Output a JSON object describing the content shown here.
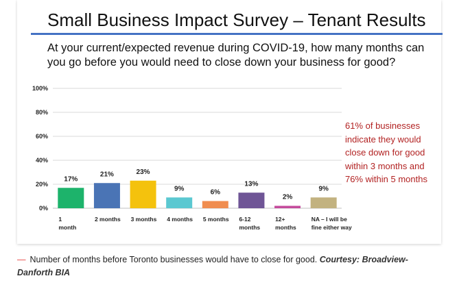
{
  "slide": {
    "title": "Small Business Impact Survey – Tenant Results",
    "question": "At your current/expected revenue during COVID-19, how many months can you go before you would need to close down your business for good?",
    "annotation": "61% of businesses indicate they would close down for good within 3 months and 76% within 5 months",
    "accent_color": "#4472c4",
    "annotation_color": "#b22222"
  },
  "caption": {
    "dash": "—",
    "text": "Number of months before Toronto businesses would have to close for good.",
    "credit": "Courtesy: Broadview-Danforth BIA"
  },
  "chart_data": {
    "type": "bar",
    "categories": [
      [
        "1",
        "month"
      ],
      [
        "2 months"
      ],
      [
        "3 months"
      ],
      [
        "4 months"
      ],
      [
        "5 months"
      ],
      [
        "6-12",
        "months"
      ],
      [
        "12+",
        "months"
      ],
      [
        "NA – I will be",
        "fine either way"
      ]
    ],
    "values": [
      17,
      21,
      23,
      9,
      6,
      13,
      2,
      9
    ],
    "data_labels": [
      "17%",
      "21%",
      "23%",
      "9%",
      "6%",
      "13%",
      "2%",
      "9%"
    ],
    "colors": [
      "#1db36b",
      "#4a74b5",
      "#f4c20d",
      "#5bc8d1",
      "#f08d4f",
      "#6f5596",
      "#c44b9c",
      "#c2b280"
    ],
    "yticks": [
      0,
      20,
      40,
      60,
      80,
      100
    ],
    "ytick_labels": [
      "0%",
      "20%",
      "40%",
      "60%",
      "80%",
      "100%"
    ],
    "ylim": [
      0,
      100
    ],
    "grid": true,
    "grid_color": "#d9d9d9"
  }
}
